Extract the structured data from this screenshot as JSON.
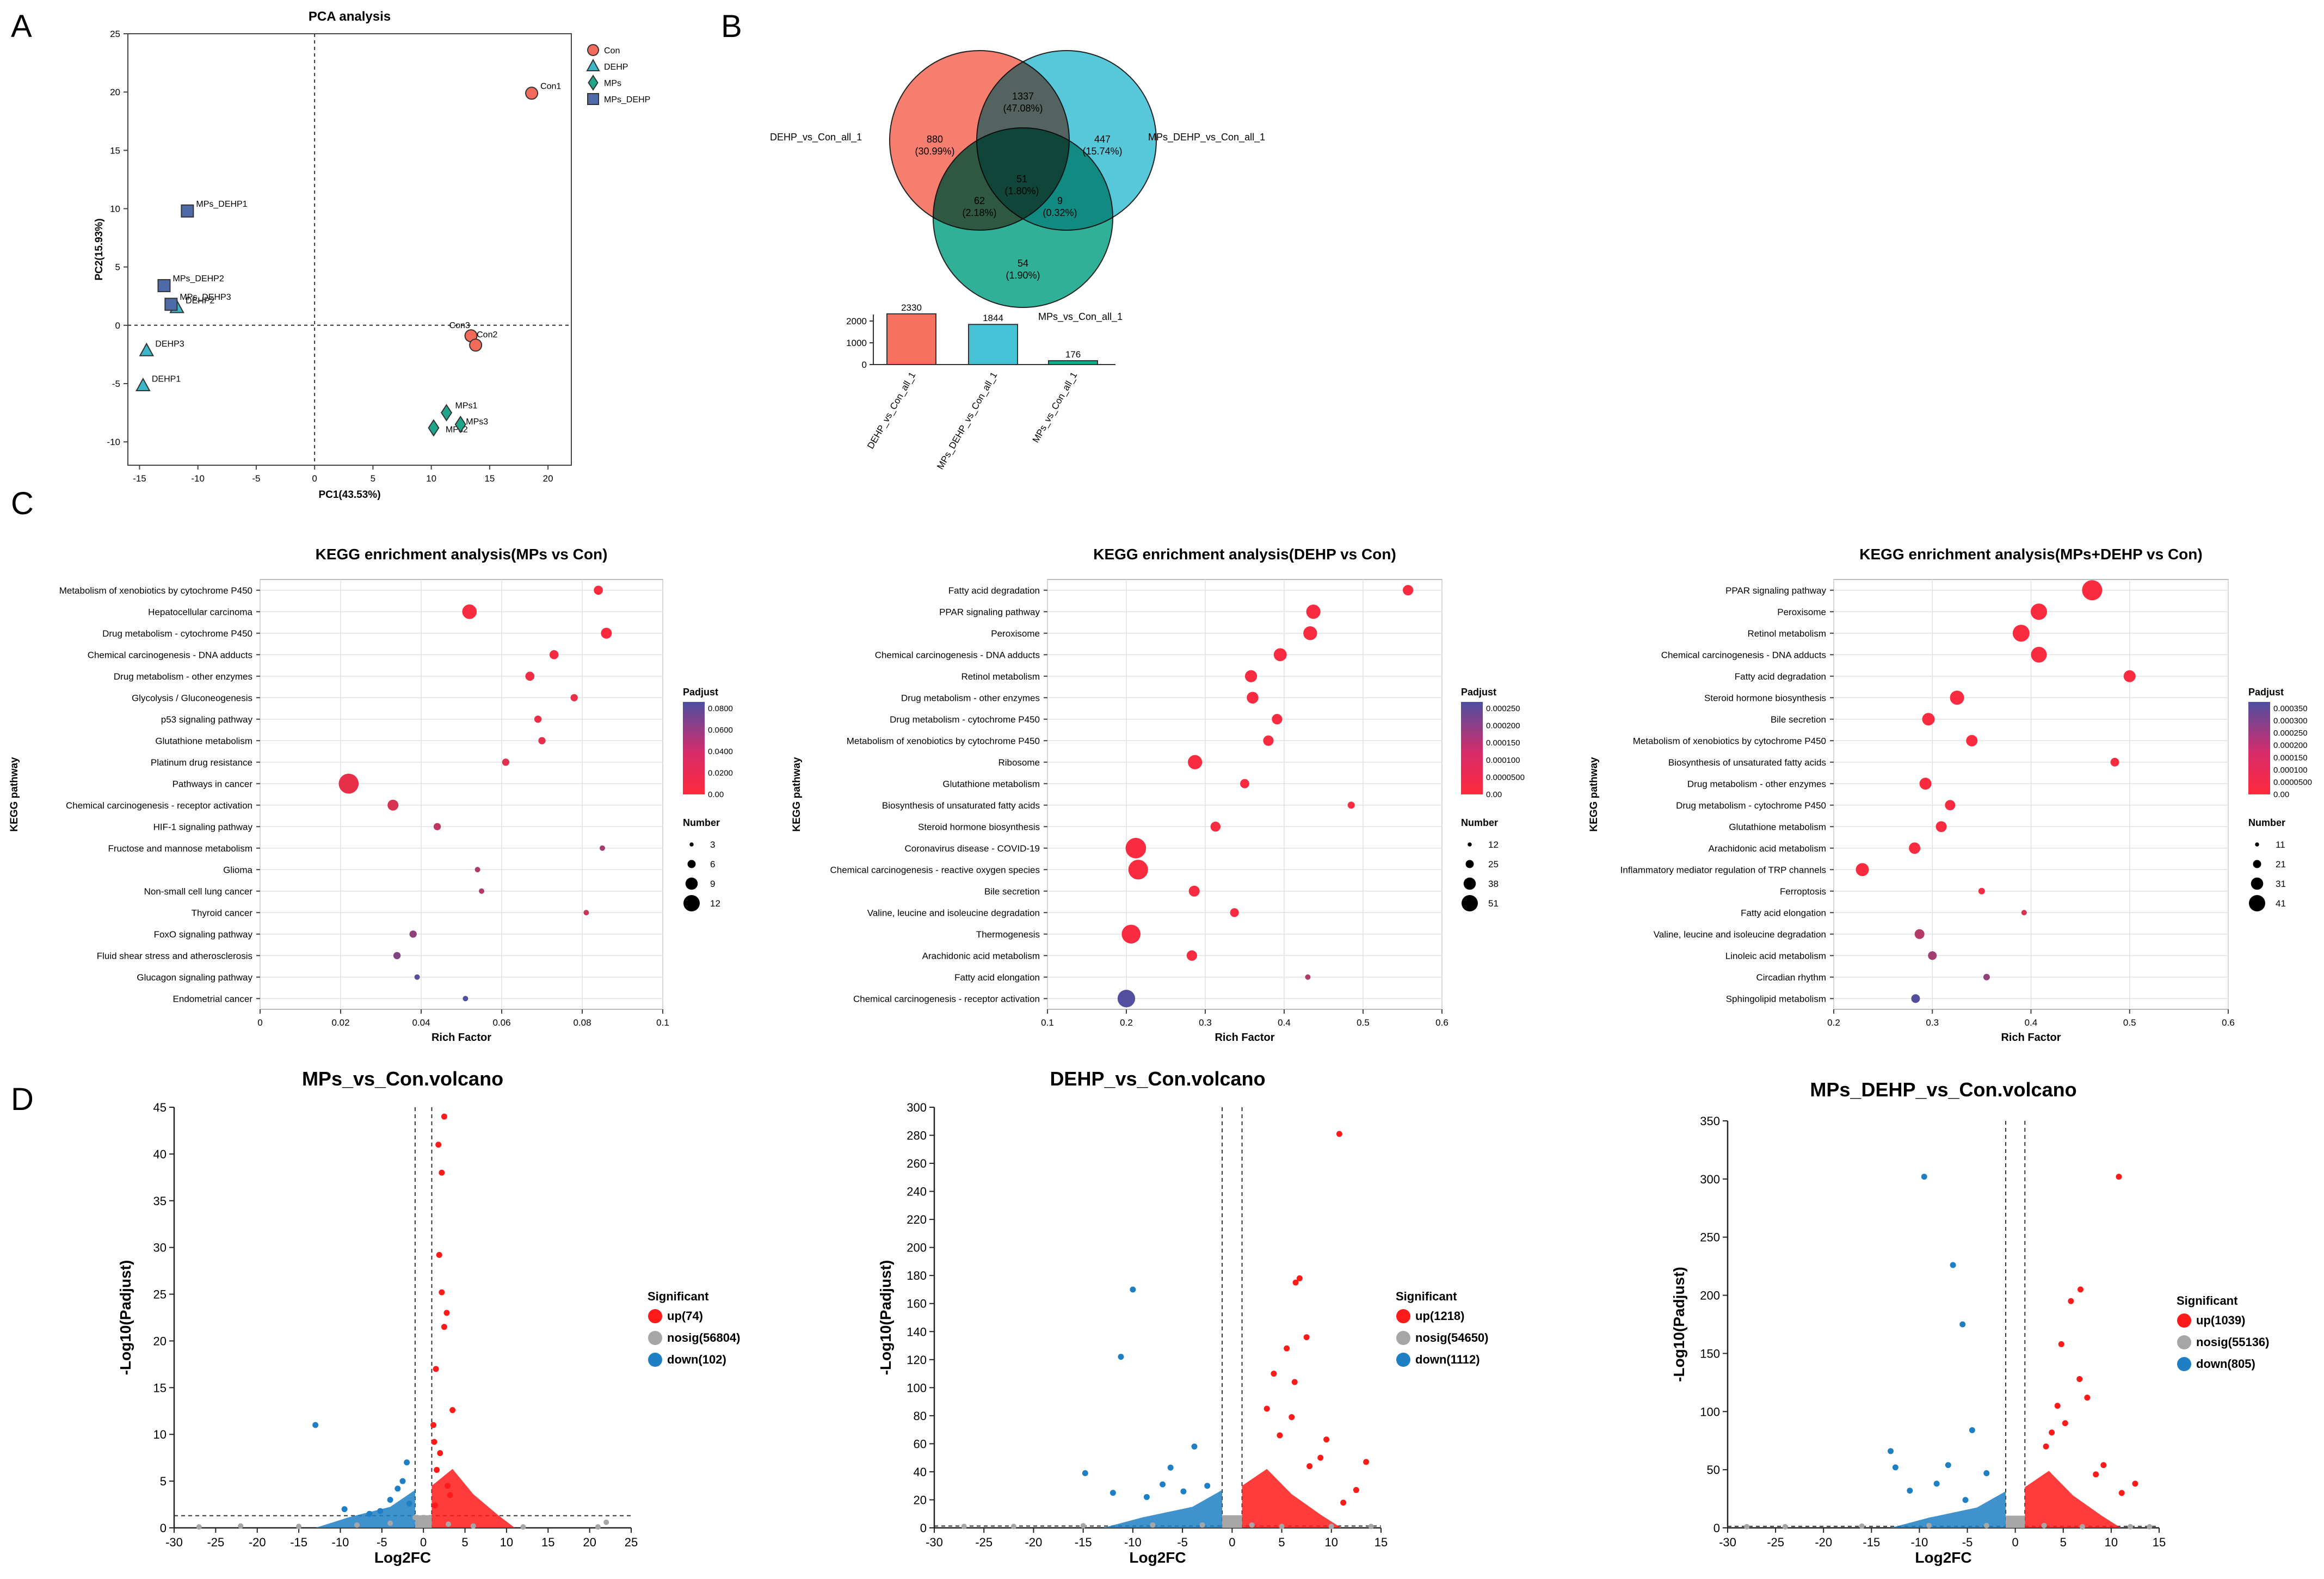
{
  "panel_letters": [
    "A",
    "B",
    "C",
    "D"
  ],
  "colors": {
    "con": "#f26a5a",
    "dehp": "#3cb7c9",
    "mps": "#1ea58a",
    "mps_dehp": "#4f6aa8",
    "venn_a": "#f5705f",
    "venn_b": "#45c2d6",
    "venn_c": "#1aa88c",
    "up": "#ff1a1a",
    "nosig": "#a6a6a6",
    "down": "#1e7fc4",
    "grad_low": "#ff2a3c",
    "grad_high": "#4d4fa1"
  },
  "chart_data": [
    {
      "id": "pca",
      "type": "scatter",
      "title": "PCA analysis",
      "xlabel": "PC1(43.53%)",
      "ylabel": "PC2(15.93%)",
      "xlim": [
        -16,
        22
      ],
      "ylim": [
        -12,
        25
      ],
      "xticks": [
        -15,
        -10,
        -5,
        0,
        5,
        10,
        15,
        20
      ],
      "yticks": [
        -10,
        -5,
        0,
        5,
        10,
        15,
        20,
        25
      ],
      "legend": [
        {
          "label": "Con",
          "shape": "circle",
          "color": "#f26a5a"
        },
        {
          "label": "DEHP",
          "shape": "triangle",
          "color": "#3cb7c9"
        },
        {
          "label": "MPs",
          "shape": "diamond",
          "color": "#1ea58a"
        },
        {
          "label": "MPs_DEHP",
          "shape": "square",
          "color": "#4f6aa8"
        }
      ],
      "points": [
        {
          "label": "Con1",
          "group": "Con",
          "x": 18.6,
          "y": 19.9
        },
        {
          "label": "Con3",
          "group": "Con",
          "x": 13.4,
          "y": -0.9
        },
        {
          "label": "Con2",
          "group": "Con",
          "x": 13.8,
          "y": -1.7
        },
        {
          "label": "DEHP2",
          "group": "DEHP",
          "x": -11.8,
          "y": 1.5
        },
        {
          "label": "DEHP3",
          "group": "DEHP",
          "x": -14.4,
          "y": -2.2
        },
        {
          "label": "DEHP1",
          "group": "DEHP",
          "x": -14.7,
          "y": -5.2
        },
        {
          "label": "MPs1",
          "group": "MPs",
          "x": 11.3,
          "y": -7.5
        },
        {
          "label": "MPs2",
          "group": "MPs",
          "x": 10.2,
          "y": -8.8
        },
        {
          "label": "MPs3",
          "group": "MPs",
          "x": 12.5,
          "y": -8.5
        },
        {
          "label": "MPs_DEHP1",
          "group": "MPs_DEHP",
          "x": -10.9,
          "y": 9.8
        },
        {
          "label": "MPs_DEHP2",
          "group": "MPs_DEHP",
          "x": -12.9,
          "y": 3.4
        },
        {
          "label": "MPs_DEHP3",
          "group": "MPs_DEHP",
          "x": -12.3,
          "y": 1.8
        }
      ]
    },
    {
      "id": "venn",
      "type": "venn",
      "sets": [
        {
          "name": "DEHP_vs_Con_all_1",
          "total": 2330
        },
        {
          "name": "MPs_DEHP_vs_Con_all_1",
          "total": 1844
        },
        {
          "name": "MPs_vs_Con_all_1",
          "total": 176
        }
      ],
      "regions": [
        {
          "key": "a",
          "count": "880",
          "pct": "(30.99%)"
        },
        {
          "key": "ab",
          "count": "1337",
          "pct": "(47.08%)"
        },
        {
          "key": "b",
          "count": "447",
          "pct": "(15.74%)"
        },
        {
          "key": "abc",
          "count": "51",
          "pct": "(1.80%)"
        },
        {
          "key": "ac",
          "count": "62",
          "pct": "(2.18%)"
        },
        {
          "key": "bc",
          "count": "9",
          "pct": "(0.32%)"
        },
        {
          "key": "c",
          "count": "54",
          "pct": "(1.90%)"
        }
      ],
      "bar_ylim": [
        0,
        2500
      ],
      "bar_yticks": [
        0,
        1000,
        2000
      ],
      "bar_categories": [
        "DEHP_vs_Con_all_1",
        "MPs_DEHP_vs_Con_all_1",
        "MPs_vs_Con_all_1"
      ],
      "bar_values": [
        2330,
        1844,
        176
      ]
    },
    {
      "id": "kegg1",
      "type": "scatter",
      "title": "KEGG enrichment analysis(MPs vs Con)",
      "xlabel": "Rich Factor",
      "ylabel": "KEGG pathway",
      "xlim": [
        0,
        0.1
      ],
      "xticks": [
        "0",
        "0.02",
        "0.04",
        "0.06",
        "0.08",
        "0.1"
      ],
      "color_title": "Padjust",
      "color_range": [
        0,
        0.09
      ],
      "color_ticks": [
        "0.0800",
        "0.0600",
        "0.0400",
        "0.0200",
        "0.00"
      ],
      "size_title": "Number",
      "size_range": [
        3,
        12
      ],
      "size_ticks": [
        "3",
        "6",
        "9",
        "12"
      ],
      "pathways": [
        "Metabolism of xenobiotics by cytochrome P450",
        "Hepatocellular carcinoma",
        "Drug metabolism - cytochrome P450",
        "Chemical carcinogenesis - DNA adducts",
        "Drug metabolism - other enzymes",
        "Glycolysis / Gluconeogenesis",
        "p53 signaling pathway",
        "Glutathione metabolism",
        "Platinum drug resistance",
        "Pathways in cancer",
        "Chemical carcinogenesis - receptor activation",
        "HIF-1 signaling pathway",
        "Fructose and mannose metabolism",
        "Glioma",
        "Non-small cell lung cancer",
        "Thyroid cancer",
        "FoxO signaling pathway",
        "Fluid shear stress and atherosclerosis",
        "Glucagon signaling pathway",
        "Endometrial cancer"
      ],
      "rich_factor": [
        0.084,
        0.052,
        0.086,
        0.073,
        0.067,
        0.078,
        0.069,
        0.07,
        0.061,
        0.022,
        0.033,
        0.044,
        0.085,
        0.054,
        0.055,
        0.081,
        0.038,
        0.034,
        0.039,
        0.051
      ],
      "padjust": [
        0.002,
        0.004,
        0.001,
        0.006,
        0.008,
        0.009,
        0.011,
        0.013,
        0.016,
        0.012,
        0.019,
        0.033,
        0.046,
        0.041,
        0.039,
        0.028,
        0.056,
        0.063,
        0.083,
        0.09
      ],
      "count": [
        5,
        8,
        6,
        5,
        5,
        4,
        4,
        4,
        4,
        11,
        6,
        4,
        2,
        3,
        3,
        2,
        4,
        4,
        3,
        2
      ]
    },
    {
      "id": "kegg2",
      "type": "scatter",
      "title": "KEGG enrichment analysis(DEHP vs Con)",
      "xlabel": "Rich Factor",
      "ylabel": "KEGG pathway",
      "xlim": [
        0.1,
        0.6
      ],
      "xticks": [
        "0.1",
        "0.2",
        "0.3",
        "0.4",
        "0.5",
        "0.6"
      ],
      "color_title": "Padjust",
      "color_range": [
        0,
        0.00028
      ],
      "color_ticks": [
        "0.000250",
        "0.000200",
        "0.000150",
        "0.000100",
        "0.0000500",
        "0.00"
      ],
      "size_title": "Number",
      "size_range": [
        12,
        51
      ],
      "size_ticks": [
        "12",
        "25",
        "38",
        "51"
      ],
      "pathways": [
        "Fatty acid degradation",
        "PPAR signaling pathway",
        "Peroxisome",
        "Chemical carcinogenesis - DNA adducts",
        "Retinol metabolism",
        "Drug metabolism - other enzymes",
        "Drug metabolism - cytochrome P450",
        "Metabolism of xenobiotics by cytochrome P450",
        "Ribosome",
        "Glutathione metabolism",
        "Biosynthesis of unsaturated fatty acids",
        "Steroid hormone biosynthesis",
        "Coronavirus disease - COVID-19",
        "Chemical carcinogenesis - reactive oxygen species",
        "Bile secretion",
        "Valine, leucine and isoleucine degradation",
        "Thermogenesis",
        "Arachidonic acid metabolism",
        "Fatty acid elongation",
        "Chemical carcinogenesis - receptor activation"
      ],
      "rich_factor": [
        0.557,
        0.437,
        0.433,
        0.395,
        0.358,
        0.36,
        0.391,
        0.38,
        0.287,
        0.35,
        0.485,
        0.313,
        0.212,
        0.215,
        0.286,
        0.337,
        0.206,
        0.283,
        0.43,
        0.2
      ],
      "padjust": [
        1e-05,
        1e-05,
        1e-05,
        1e-05,
        1e-05,
        1e-05,
        1e-05,
        1e-05,
        1e-05,
        1e-05,
        1e-05,
        1e-05,
        1e-05,
        1e-05,
        1e-05,
        1e-05,
        1e-05,
        1e-05,
        0.00012,
        0.00027
      ],
      "count": [
        24,
        33,
        32,
        30,
        28,
        27,
        24,
        24,
        33,
        21,
        16,
        23,
        48,
        46,
        25,
        20,
        44,
        24,
        12,
        41
      ]
    },
    {
      "id": "kegg3",
      "type": "scatter",
      "title": "KEGG enrichment analysis(MPs+DEHP vs Con)",
      "xlabel": "Rich Factor",
      "ylabel": "KEGG pathway",
      "xlim": [
        0.2,
        0.6
      ],
      "xticks": [
        "0.2",
        "0.3",
        "0.4",
        "0.5",
        "0.6"
      ],
      "color_title": "Padjust",
      "color_range": [
        0,
        0.00036
      ],
      "color_ticks": [
        "0.000350",
        "0.000300",
        "0.000250",
        "0.000200",
        "0.000150",
        "0.000100",
        "0.0000500",
        "0.00"
      ],
      "size_title": "Number",
      "size_range": [
        11,
        41
      ],
      "size_ticks": [
        "11",
        "21",
        "31",
        "41"
      ],
      "pathways": [
        "PPAR signaling pathway",
        "Peroxisome",
        "Retinol metabolism",
        "Chemical carcinogenesis - DNA adducts",
        "Fatty acid degradation",
        "Steroid hormone biosynthesis",
        "Bile secretion",
        "Metabolism of xenobiotics by cytochrome P450",
        "Biosynthesis of unsaturated fatty acids",
        "Drug metabolism - other enzymes",
        "Drug metabolism - cytochrome P450",
        "Glutathione metabolism",
        "Arachidonic acid metabolism",
        "Inflammatory mediator regulation of TRP channels",
        "Ferroptosis",
        "Fatty acid elongation",
        "Valine, leucine and isoleucine degradation",
        "Linoleic acid metabolism",
        "Circadian rhythm",
        "Sphingolipid metabolism"
      ],
      "rich_factor": [
        0.462,
        0.408,
        0.39,
        0.408,
        0.5,
        0.325,
        0.296,
        0.34,
        0.485,
        0.293,
        0.318,
        0.309,
        0.282,
        0.229,
        0.35,
        0.393,
        0.287,
        0.3,
        0.355,
        0.283
      ],
      "padjust": [
        1e-05,
        1e-05,
        1e-05,
        1e-05,
        1e-05,
        1e-05,
        1e-05,
        1e-05,
        1e-05,
        1e-05,
        1e-05,
        1e-05,
        1e-05,
        1e-05,
        3e-05,
        8e-05,
        0.00015,
        0.00019,
        0.00022,
        0.00035
      ],
      "count": [
        38,
        31,
        32,
        30,
        23,
        27,
        24,
        22,
        17,
        23,
        20,
        21,
        22,
        25,
        13,
        11,
        19,
        17,
        13,
        17
      ]
    },
    {
      "id": "volcano1",
      "type": "scatter",
      "title": "MPs_vs_Con.volcano",
      "xlabel": "Log2FC",
      "ylabel": "-Log10(Padjust)",
      "xlim": [
        -30,
        25
      ],
      "ylim": [
        0,
        45
      ],
      "xticks": [
        -30,
        -25,
        -20,
        -15,
        -10,
        -5,
        0,
        5,
        10,
        15,
        20,
        25
      ],
      "yticks": [
        0,
        5,
        10,
        15,
        20,
        25,
        30,
        35,
        40,
        45
      ],
      "fc_threshold": 1,
      "p_line": 1.3,
      "legend_title": "Significant",
      "legend": [
        "up(74)",
        "nosig(56804)",
        "down(102)"
      ],
      "up_points": [
        [
          2.5,
          44
        ],
        [
          1.8,
          41
        ],
        [
          2.2,
          38
        ],
        [
          2.8,
          23
        ],
        [
          2.5,
          21.5
        ],
        [
          1.5,
          17
        ],
        [
          3.5,
          12.6
        ],
        [
          1.2,
          11
        ],
        [
          2.0,
          8
        ],
        [
          3.2,
          3.5
        ],
        [
          1.9,
          29.2
        ],
        [
          2.2,
          25.2
        ],
        [
          1.3,
          9.2
        ],
        [
          1.6,
          6.2
        ],
        [
          2.9,
          4.5
        ],
        [
          1.4,
          2.4
        ]
      ],
      "down_points": [
        [
          -13,
          11
        ],
        [
          -9.5,
          2
        ],
        [
          -6.5,
          1.5
        ],
        [
          -4,
          3
        ],
        [
          -2.5,
          5
        ],
        [
          -2,
          7
        ],
        [
          -3.1,
          4.2
        ],
        [
          -1.7,
          2.6
        ],
        [
          -5.2,
          1.8
        ]
      ],
      "nosig_points": [
        [
          -27,
          0.1
        ],
        [
          -22,
          0.2
        ],
        [
          -15,
          0.15
        ],
        [
          -8,
          0.3
        ],
        [
          -4,
          0.5
        ],
        [
          0,
          0.8
        ],
        [
          3,
          0.4
        ],
        [
          6,
          0.2
        ],
        [
          12,
          0.1
        ],
        [
          21,
          0.1
        ],
        [
          22,
          0.6
        ],
        [
          -1,
          1.1
        ],
        [
          0.5,
          0.9
        ]
      ]
    },
    {
      "id": "volcano2",
      "type": "scatter",
      "title": "DEHP_vs_Con.volcano",
      "xlabel": "Log2FC",
      "ylabel": "-Log10(Padjust)",
      "xlim": [
        -30,
        15
      ],
      "ylim": [
        0,
        300
      ],
      "xticks": [
        -30,
        -25,
        -20,
        -15,
        -10,
        -5,
        0,
        5,
        10,
        15
      ],
      "yticks": [
        0,
        20,
        40,
        60,
        80,
        100,
        120,
        140,
        160,
        180,
        200,
        220,
        240,
        260,
        280,
        300
      ],
      "fc_threshold": 1,
      "p_line": 1.3,
      "legend_title": "Significant",
      "legend": [
        "up(1218)",
        "nosig(54650)",
        "down(1112)"
      ],
      "up_points": [
        [
          10.8,
          281
        ],
        [
          6.8,
          178
        ],
        [
          6.4,
          175
        ],
        [
          7.5,
          136
        ],
        [
          5.5,
          128
        ],
        [
          8.9,
          50
        ],
        [
          9.5,
          63
        ],
        [
          13.5,
          47
        ],
        [
          4.2,
          110
        ],
        [
          6.3,
          104
        ],
        [
          6.0,
          79
        ],
        [
          3.5,
          85
        ],
        [
          7.8,
          44
        ],
        [
          12.5,
          27
        ],
        [
          11.2,
          18
        ],
        [
          4.8,
          66
        ]
      ],
      "down_points": [
        [
          -10,
          170
        ],
        [
          -11.2,
          122
        ],
        [
          -3.8,
          58
        ],
        [
          -6.2,
          43
        ],
        [
          -14.8,
          39
        ],
        [
          -7,
          31
        ],
        [
          -12,
          25
        ],
        [
          -2.5,
          30
        ],
        [
          -8.6,
          22
        ],
        [
          -4.9,
          26
        ]
      ],
      "nosig_points": [
        [
          -27,
          1
        ],
        [
          -22,
          1
        ],
        [
          -15,
          1.5
        ],
        [
          -8,
          2
        ],
        [
          -3,
          2
        ],
        [
          0,
          3
        ],
        [
          2,
          2
        ],
        [
          5,
          1
        ],
        [
          10,
          1
        ],
        [
          14,
          1
        ]
      ]
    },
    {
      "id": "volcano3",
      "type": "scatter",
      "title": "MPs_DEHP_vs_Con.volcano",
      "xlabel": "Log2FC",
      "ylabel": "-Log10(Padjust)",
      "xlim": [
        -30,
        15
      ],
      "ylim": [
        0,
        350
      ],
      "xticks": [
        -30,
        -25,
        -20,
        -15,
        -10,
        -5,
        0,
        5,
        10,
        15
      ],
      "yticks": [
        0,
        50,
        100,
        150,
        200,
        250,
        300,
        350
      ],
      "fc_threshold": 1,
      "p_line": 1.3,
      "legend_title": "Significant",
      "legend": [
        "up(1039)",
        "nosig(55136)",
        "down(805)"
      ],
      "up_points": [
        [
          10.8,
          302
        ],
        [
          6.8,
          205
        ],
        [
          5.8,
          195
        ],
        [
          4.8,
          158
        ],
        [
          6.7,
          128
        ],
        [
          7.5,
          112
        ],
        [
          3.8,
          82
        ],
        [
          12.5,
          38
        ],
        [
          9.2,
          54
        ],
        [
          5.2,
          90
        ],
        [
          3.2,
          70
        ],
        [
          8.4,
          46
        ],
        [
          11.1,
          30
        ],
        [
          4.4,
          105
        ]
      ],
      "down_points": [
        [
          -9.5,
          302
        ],
        [
          -6.5,
          226
        ],
        [
          -5.5,
          175
        ],
        [
          -13,
          66
        ],
        [
          -4.5,
          84
        ],
        [
          -7,
          54
        ],
        [
          -11,
          32
        ],
        [
          -3,
          47
        ],
        [
          -8.2,
          38
        ],
        [
          -12.5,
          52
        ],
        [
          -5.2,
          24
        ]
      ],
      "nosig_points": [
        [
          -28,
          1
        ],
        [
          -24,
          1
        ],
        [
          -16,
          1.5
        ],
        [
          -9,
          2
        ],
        [
          -3,
          2
        ],
        [
          0,
          3
        ],
        [
          3,
          2
        ],
        [
          7,
          1
        ],
        [
          12,
          1
        ],
        [
          14,
          1
        ]
      ]
    }
  ]
}
